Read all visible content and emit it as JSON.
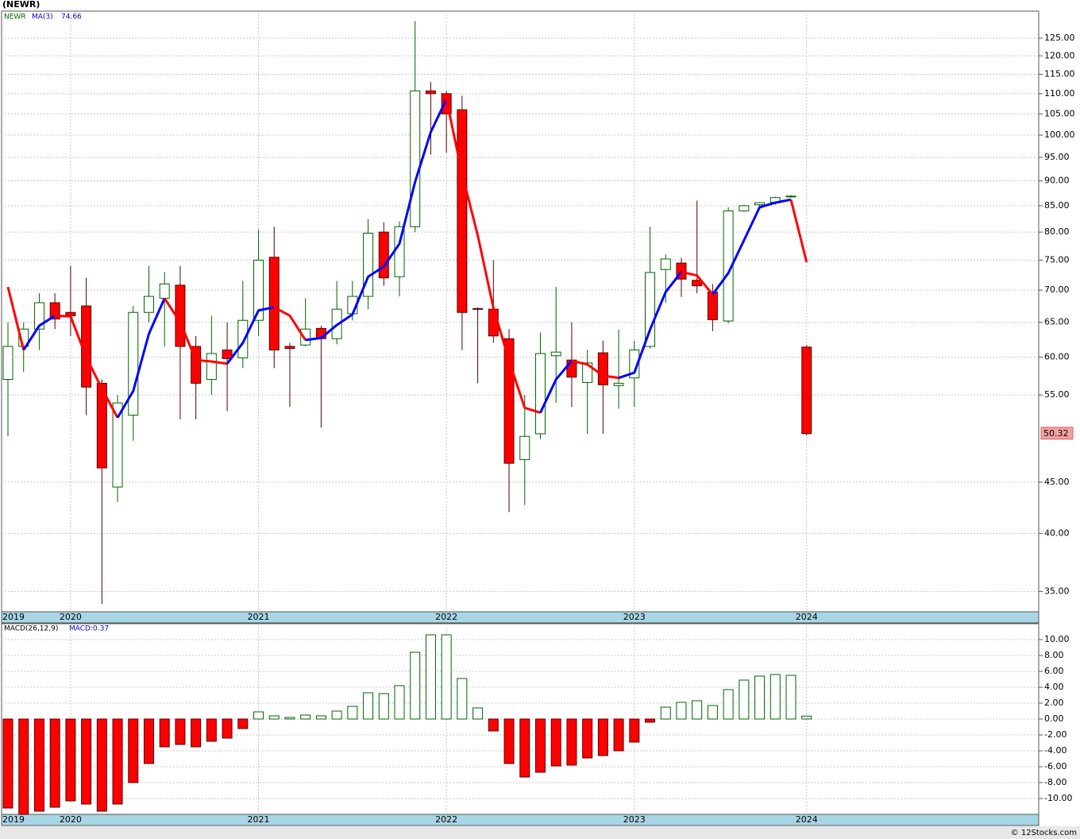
{
  "chart_data": [
    {
      "type": "candlestick",
      "title": "(NEWR)",
      "categories": [
        "2019",
        null,
        null,
        null,
        "2020",
        null,
        null,
        null,
        null,
        null,
        null,
        null,
        null,
        null,
        null,
        null,
        "2021",
        null,
        null,
        null,
        null,
        null,
        null,
        null,
        null,
        null,
        null,
        null,
        "2022",
        null,
        null,
        null,
        null,
        null,
        null,
        null,
        null,
        null,
        null,
        null,
        "2023",
        null,
        null,
        null,
        null,
        null,
        null,
        null,
        null,
        null,
        null,
        "2024"
      ],
      "ohlc": {
        "name": "NEWR",
        "color": "#006400",
        "up_color": "#ffffff",
        "down_color": "#ff0000",
        "open": [
          57,
          61.5,
          64,
          68,
          66.5,
          67.5,
          56.5,
          44.5,
          52.5,
          66.5,
          68.7,
          70.8,
          61.5,
          57,
          61,
          59.9,
          65.3,
          75.5,
          61.5,
          61.7,
          64.1,
          62.6,
          66.3,
          69,
          80,
          72.2,
          81,
          110.7,
          110,
          106,
          67.1,
          67,
          62.6,
          47.4,
          50.3,
          60.2,
          59.6,
          56.6,
          60.6,
          56.2,
          57.2,
          61.5,
          73.4,
          74.5,
          71.6,
          69.7,
          65.2,
          84,
          85.2,
          85.7,
          86.8,
          61.4
        ],
        "high": [
          65,
          65,
          69.5,
          69.5,
          74,
          72,
          57,
          55,
          67.5,
          74,
          73,
          74,
          63,
          66,
          65,
          71.5,
          80.5,
          81,
          62,
          68.7,
          64.5,
          71.5,
          71.5,
          82.4,
          81.8,
          82,
          130,
          113,
          110.7,
          109.5,
          67.3,
          75,
          64,
          55,
          63.5,
          70.5,
          65,
          61,
          62.3,
          63.9,
          62.3,
          81,
          76,
          75.4,
          86,
          71,
          84.7,
          85.2,
          85.7,
          86.8,
          87.1,
          61.7
        ],
        "low": [
          50,
          58,
          61,
          64,
          63,
          52.5,
          34,
          43,
          49.5,
          65,
          61.5,
          52,
          52,
          55,
          53,
          58.5,
          63,
          58.5,
          53.5,
          61.5,
          51,
          61.8,
          65.3,
          67,
          70.7,
          69,
          80,
          95.6,
          96,
          61,
          56.5,
          62,
          42,
          42.7,
          49.7,
          54,
          53.5,
          50.3,
          50.3,
          53.3,
          53.5,
          61.2,
          68,
          68.9,
          69.5,
          63.7,
          64.8,
          83.8,
          84.9,
          85.2,
          86.6,
          50.1
        ],
        "close": [
          61.5,
          64,
          68,
          65.5,
          66,
          56,
          46.5,
          54,
          66.5,
          69,
          71,
          61.5,
          56.5,
          60.5,
          59.8,
          65.3,
          75,
          61,
          61.2,
          64,
          62.6,
          67,
          69,
          79.8,
          72,
          81,
          110.7,
          110,
          105,
          66.5,
          67,
          63,
          47,
          50,
          60.5,
          60.7,
          57.3,
          59.2,
          56.3,
          56.5,
          61,
          72.9,
          75.2,
          71.8,
          70.7,
          65.4,
          84,
          85,
          85.6,
          86.6,
          86.9,
          50.32
        ]
      },
      "ma": {
        "name": "MA(3)",
        "color": "#0000cc",
        "up_color": "#0000ff",
        "down_color": "#ff0000",
        "values": [
          70.5,
          61,
          64.5,
          66,
          65.9,
          60,
          55.8,
          52.2,
          55.5,
          63.3,
          68.7,
          65,
          59.6,
          59.4,
          59.1,
          62,
          66.8,
          67.3,
          66,
          62.4,
          62.7,
          64.6,
          66.2,
          72.2,
          73.9,
          77.9,
          89.8,
          100.7,
          108.6,
          91.5,
          79.4,
          67.2,
          59.5,
          53.4,
          52.8,
          57,
          59.5,
          59,
          57.5,
          57.2,
          57.9,
          63.9,
          69.7,
          73,
          72.4,
          69.3,
          72.8,
          78.5,
          84.7,
          85.6,
          86.2,
          74.66
        ]
      },
      "ylim": [
        33.4,
        133
      ],
      "log_scale": true,
      "grid": true,
      "yticks": [
        {
          "value": 35,
          "label": "35.00"
        },
        {
          "value": 40,
          "label": "40.00"
        },
        {
          "value": 45,
          "label": "45.00"
        },
        {
          "value": 55,
          "label": "55.00"
        },
        {
          "value": 60,
          "label": "60.00"
        },
        {
          "value": 65,
          "label": "65.00"
        },
        {
          "value": 70,
          "label": "70.00"
        },
        {
          "value": 75,
          "label": "75.00"
        },
        {
          "value": 80,
          "label": "80.00"
        },
        {
          "value": 85,
          "label": "85.00"
        },
        {
          "value": 90,
          "label": "90.00"
        },
        {
          "value": 95,
          "label": "95.00"
        },
        {
          "value": 100,
          "label": "100.00"
        },
        {
          "value": 105,
          "label": "105.00"
        },
        {
          "value": 110,
          "label": "110.00"
        },
        {
          "value": 115,
          "label": "115.00"
        },
        {
          "value": 120,
          "label": "120.00"
        },
        {
          "value": 125,
          "label": "125.00"
        }
      ]
    },
    {
      "type": "bar",
      "title": "MACD(26,12,9)",
      "legend": "MACD:0.37",
      "categories": [
        "2019",
        null,
        null,
        null,
        "2020",
        null,
        null,
        null,
        null,
        null,
        null,
        null,
        null,
        null,
        null,
        null,
        "2021",
        null,
        null,
        null,
        null,
        null,
        null,
        null,
        null,
        null,
        null,
        null,
        "2022",
        null,
        null,
        null,
        null,
        null,
        null,
        null,
        null,
        null,
        null,
        null,
        "2023",
        null,
        null,
        null,
        null,
        null,
        null,
        null,
        null,
        null,
        null,
        "2024"
      ],
      "values": [
        -11.2,
        -12,
        -11.6,
        -11.1,
        -10.3,
        -10.7,
        -11.6,
        -10.7,
        -8,
        -5.6,
        -3.5,
        -3.2,
        -3.5,
        -2.8,
        -2.4,
        -1.2,
        0.9,
        0.4,
        0.2,
        0.5,
        0.4,
        1,
        1.6,
        3.3,
        3.2,
        4.2,
        8.4,
        10.6,
        10.6,
        5.1,
        1.4,
        -1.5,
        -5.6,
        -7.3,
        -6.7,
        -5.9,
        -5.8,
        -4.9,
        -4.6,
        -4,
        -2.9,
        -0.4,
        1.5,
        2.1,
        2.3,
        1.7,
        3.7,
        4.9,
        5.4,
        5.6,
        5.5,
        0.37
      ],
      "positive_color": "#006400",
      "negative_color": "#ff0000",
      "grid": true,
      "ylim": [
        -12,
        12
      ],
      "yticks": [
        {
          "value": -10,
          "label": "-10.00"
        },
        {
          "value": -8,
          "label": "-8.00"
        },
        {
          "value": -6,
          "label": "-6.00"
        },
        {
          "value": -4,
          "label": "-4.00"
        },
        {
          "value": -2,
          "label": "-2.00"
        },
        {
          "value": 0,
          "label": "0.00"
        },
        {
          "value": 2,
          "label": "2.00"
        },
        {
          "value": 4,
          "label": "4.00"
        },
        {
          "value": 6,
          "label": "6.00"
        },
        {
          "value": 8,
          "label": "8.00"
        },
        {
          "value": 10,
          "label": "10.00"
        }
      ]
    }
  ],
  "footer": "© 12Stocks.com"
}
